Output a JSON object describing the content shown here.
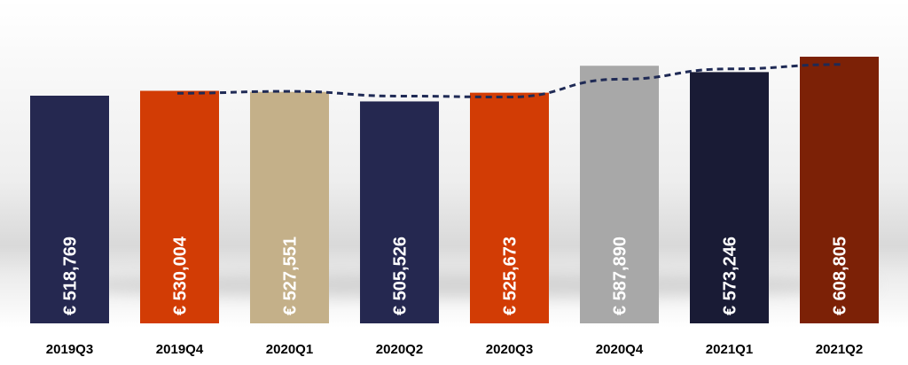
{
  "chart_data": {
    "type": "bar",
    "categories": [
      "2019Q3",
      "2019Q4",
      "2020Q1",
      "2020Q2",
      "2020Q3",
      "2020Q4",
      "2021Q1",
      "2021Q2"
    ],
    "values": [
      518769,
      530004,
      527551,
      505526,
      525673,
      587890,
      573246,
      608805
    ],
    "data_labels": [
      "€ 518,769",
      "€ 530,004",
      "€ 527,551",
      "€ 505,526",
      "€ 525,673",
      "€ 587,890",
      "€ 573,246",
      "€ 608,805"
    ],
    "bar_colors": [
      "#252850",
      "#d23c05",
      "#c4b089",
      "#252850",
      "#d23c05",
      "#a8a8a8",
      "#191b35",
      "#7c2106"
    ],
    "trendline": {
      "style": "dashed",
      "color": "#1f2a55",
      "x": [
        "2019Q4",
        "2020Q1",
        "2020Q2",
        "2020Q3",
        "2020Q4",
        "2021Q1",
        "2021Q2"
      ],
      "values": [
        524386,
        528778,
        517777,
        515600,
        556782,
        580568,
        590848
      ]
    },
    "title": "",
    "xlabel": "",
    "ylabel": "",
    "ylim": [
      0,
      630000
    ],
    "legend": "none",
    "grid": false
  }
}
